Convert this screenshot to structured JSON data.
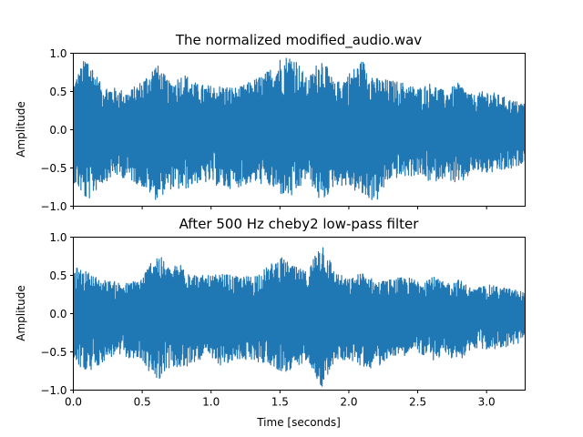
{
  "chart_data": [
    {
      "type": "line",
      "title": "The normalized modified_audio.wav",
      "xlabel": "",
      "ylabel": "Amplitude",
      "xlim": [
        0,
        3.28
      ],
      "ylim": [
        -1.0,
        1.0
      ],
      "yticks": [
        "1.0",
        "0.5",
        "0.0",
        "−0.5",
        "−1.0"
      ],
      "ytick_values": [
        1.0,
        0.5,
        0.0,
        -0.5,
        -1.0
      ],
      "xticks": [],
      "xtick_values": [
        0,
        0.5,
        1.0,
        1.5,
        2.0,
        2.5,
        3.0
      ],
      "grid": false,
      "series": [
        {
          "color": "#1f77b4",
          "x": [
            0.0,
            0.1,
            0.2,
            0.3,
            0.4,
            0.5,
            0.6,
            0.7,
            0.8,
            0.9,
            1.0,
            1.1,
            1.2,
            1.3,
            1.4,
            1.5,
            1.6,
            1.7,
            1.8,
            1.9,
            2.0,
            2.1,
            2.2,
            2.3,
            2.4,
            2.5,
            2.6,
            2.7,
            2.8,
            2.9,
            3.0,
            3.1,
            3.2,
            3.28
          ],
          "upper": [
            0.62,
            1.0,
            0.6,
            0.55,
            0.5,
            0.65,
            0.88,
            0.62,
            0.75,
            0.6,
            0.58,
            0.58,
            0.55,
            0.65,
            0.75,
            0.95,
            1.0,
            0.65,
            0.98,
            0.6,
            0.75,
            0.92,
            0.68,
            0.65,
            0.62,
            0.55,
            0.62,
            0.5,
            0.62,
            0.45,
            0.52,
            0.45,
            0.38,
            0.35
          ],
          "lower": [
            -0.68,
            -0.95,
            -0.72,
            -0.6,
            -0.65,
            -0.75,
            -0.92,
            -0.78,
            -0.8,
            -0.7,
            -0.7,
            -0.78,
            -0.75,
            -0.7,
            -0.72,
            -0.85,
            -0.9,
            -0.62,
            -0.98,
            -0.72,
            -0.75,
            -0.88,
            -0.95,
            -0.65,
            -0.62,
            -0.6,
            -0.7,
            -0.62,
            -0.75,
            -0.55,
            -0.58,
            -0.55,
            -0.52,
            -0.4
          ]
        }
      ]
    },
    {
      "type": "line",
      "title": "After 500 Hz cheby2 low-pass filter",
      "xlabel": "Time [seconds]",
      "ylabel": "Amplitude",
      "xlim": [
        0,
        3.28
      ],
      "ylim": [
        -1.0,
        1.0
      ],
      "yticks": [
        "1.0",
        "0.5",
        "0.0",
        "−0.5",
        "−1.0"
      ],
      "ytick_values": [
        1.0,
        0.5,
        0.0,
        -0.5,
        -1.0
      ],
      "xticks": [
        "0.0",
        "0.5",
        "1.0",
        "1.5",
        "2.0",
        "2.5",
        "3.0"
      ],
      "xtick_values": [
        0,
        0.5,
        1.0,
        1.5,
        2.0,
        2.5,
        3.0
      ],
      "grid": false,
      "series": [
        {
          "color": "#1f77b4",
          "x": [
            0.0,
            0.1,
            0.2,
            0.3,
            0.4,
            0.5,
            0.6,
            0.7,
            0.8,
            0.9,
            1.0,
            1.1,
            1.2,
            1.3,
            1.4,
            1.5,
            1.6,
            1.7,
            1.8,
            1.9,
            2.0,
            2.1,
            2.2,
            2.3,
            2.4,
            2.5,
            2.6,
            2.7,
            2.8,
            2.9,
            3.0,
            3.1,
            3.2,
            3.28
          ],
          "upper": [
            0.62,
            0.55,
            0.45,
            0.42,
            0.4,
            0.48,
            0.82,
            0.6,
            0.68,
            0.5,
            0.5,
            0.52,
            0.48,
            0.5,
            0.6,
            0.75,
            0.62,
            0.55,
            1.0,
            0.55,
            0.45,
            0.55,
            0.42,
            0.45,
            0.48,
            0.45,
            0.5,
            0.4,
            0.45,
            0.32,
            0.38,
            0.35,
            0.32,
            0.28
          ],
          "lower": [
            -0.6,
            -0.8,
            -0.65,
            -0.55,
            -0.58,
            -0.62,
            -0.9,
            -0.7,
            -0.75,
            -0.6,
            -0.62,
            -0.7,
            -0.6,
            -0.62,
            -0.65,
            -0.75,
            -0.8,
            -0.58,
            -0.98,
            -0.62,
            -0.6,
            -0.7,
            -0.72,
            -0.55,
            -0.55,
            -0.5,
            -0.62,
            -0.55,
            -0.62,
            -0.45,
            -0.48,
            -0.45,
            -0.42,
            -0.35
          ]
        }
      ]
    }
  ]
}
